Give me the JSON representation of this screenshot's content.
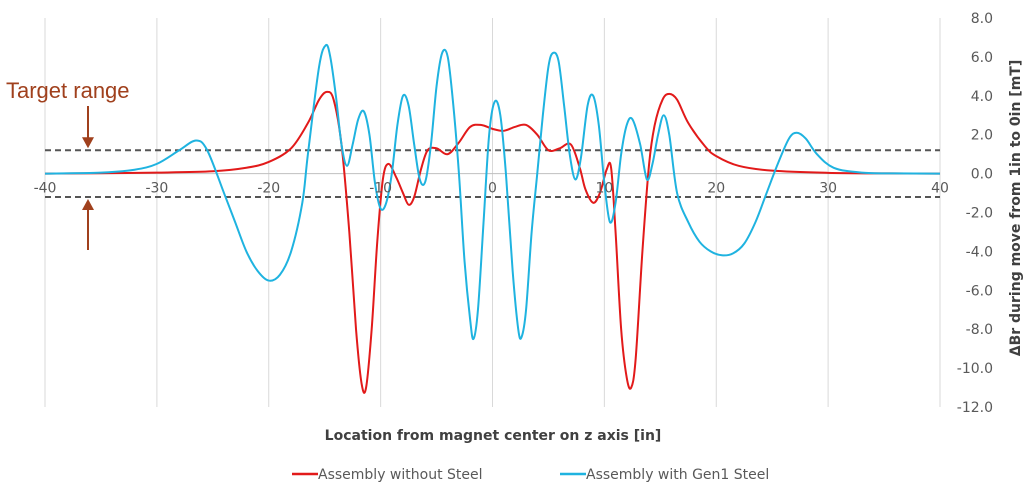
{
  "chart_data": {
    "type": "line",
    "xlabel": "Location from magnet center on z axis [in]",
    "ylabel": "ΔBr during move from 1in to 0in [mT]",
    "xlim": [
      -40,
      40
    ],
    "ylim": [
      -12,
      8
    ],
    "x_ticks": [
      "-40",
      "-30",
      "-20",
      "-10",
      "0",
      "10",
      "20",
      "30",
      "40"
    ],
    "y_ticks": [
      "8.0",
      "6.0",
      "4.0",
      "2.0",
      "0.0",
      "-2.0",
      "-4.0",
      "-6.0",
      "-8.0",
      "-10.0",
      "-12.0"
    ],
    "grid": "vertical",
    "legend": "bottom",
    "series": [
      {
        "name": "Assembly without Steel",
        "color": "#e21a1a",
        "points": [
          [
            -40,
            0.0
          ],
          [
            -35,
            0.02
          ],
          [
            -30,
            0.05
          ],
          [
            -25,
            0.12
          ],
          [
            -22,
            0.3
          ],
          [
            -20,
            0.6
          ],
          [
            -18,
            1.3
          ],
          [
            -16.5,
            2.6
          ],
          [
            -15.5,
            3.8
          ],
          [
            -14.8,
            4.2
          ],
          [
            -14.2,
            3.8
          ],
          [
            -13.5,
            1.5
          ],
          [
            -12.8,
            -3.0
          ],
          [
            -12.2,
            -8.0
          ],
          [
            -11.7,
            -10.8
          ],
          [
            -11.3,
            -11.0
          ],
          [
            -10.8,
            -8.0
          ],
          [
            -10.3,
            -3.5
          ],
          [
            -9.8,
            -0.3
          ],
          [
            -9.3,
            0.5
          ],
          [
            -8.6,
            -0.2
          ],
          [
            -8.0,
            -1.0
          ],
          [
            -7.5,
            -1.6
          ],
          [
            -7.0,
            -1.2
          ],
          [
            -6.4,
            0.2
          ],
          [
            -5.8,
            1.2
          ],
          [
            -5.0,
            1.3
          ],
          [
            -4.0,
            1.0
          ],
          [
            -3.0,
            1.6
          ],
          [
            -2.0,
            2.4
          ],
          [
            -1.0,
            2.5
          ],
          [
            0.0,
            2.3
          ],
          [
            1.0,
            2.2
          ],
          [
            2.0,
            2.4
          ],
          [
            3.0,
            2.5
          ],
          [
            4.0,
            2.0
          ],
          [
            5.0,
            1.2
          ],
          [
            6.0,
            1.3
          ],
          [
            7.0,
            1.5
          ],
          [
            7.8,
            0.3
          ],
          [
            8.3,
            -0.8
          ],
          [
            9.0,
            -1.5
          ],
          [
            9.6,
            -1.0
          ],
          [
            10.2,
            0.2
          ],
          [
            10.6,
            0.3
          ],
          [
            11.0,
            -3.0
          ],
          [
            11.5,
            -8.0
          ],
          [
            12.0,
            -10.5
          ],
          [
            12.4,
            -11.0
          ],
          [
            12.8,
            -9.5
          ],
          [
            13.4,
            -4.0
          ],
          [
            14.0,
            0.5
          ],
          [
            14.5,
            2.5
          ],
          [
            15.2,
            3.8
          ],
          [
            15.8,
            4.1
          ],
          [
            16.5,
            3.8
          ],
          [
            17.5,
            2.6
          ],
          [
            19.0,
            1.4
          ],
          [
            20.0,
            0.9
          ],
          [
            22.0,
            0.4
          ],
          [
            25.0,
            0.15
          ],
          [
            30.0,
            0.04
          ],
          [
            35.0,
            0.01
          ],
          [
            40,
            0.0
          ]
        ]
      },
      {
        "name": "Assembly with Gen1 Steel",
        "color": "#1fb3e0",
        "points": [
          [
            -40,
            0.0
          ],
          [
            -35,
            0.05
          ],
          [
            -32,
            0.2
          ],
          [
            -30,
            0.5
          ],
          [
            -28,
            1.2
          ],
          [
            -26.5,
            1.7
          ],
          [
            -25.5,
            1.2
          ],
          [
            -24,
            -1.0
          ],
          [
            -23,
            -2.5
          ],
          [
            -22,
            -4.0
          ],
          [
            -21,
            -5.0
          ],
          [
            -20,
            -5.5
          ],
          [
            -19,
            -5.2
          ],
          [
            -18,
            -4.0
          ],
          [
            -17,
            -1.5
          ],
          [
            -16.5,
            1.0
          ],
          [
            -15.5,
            5.5
          ],
          [
            -14.9,
            6.6
          ],
          [
            -14.5,
            6.0
          ],
          [
            -14.0,
            4.0
          ],
          [
            -13.5,
            1.5
          ],
          [
            -13.0,
            0.4
          ],
          [
            -12.5,
            1.5
          ],
          [
            -12.0,
            2.8
          ],
          [
            -11.5,
            3.2
          ],
          [
            -11.0,
            2.0
          ],
          [
            -10.5,
            -0.5
          ],
          [
            -10.0,
            -1.8
          ],
          [
            -9.5,
            -1.5
          ],
          [
            -9.0,
            0.0
          ],
          [
            -8.5,
            2.5
          ],
          [
            -8.0,
            4.0
          ],
          [
            -7.5,
            3.5
          ],
          [
            -7.0,
            1.5
          ],
          [
            -6.5,
            -0.3
          ],
          [
            -6.0,
            -0.4
          ],
          [
            -5.5,
            1.5
          ],
          [
            -5.0,
            4.5
          ],
          [
            -4.5,
            6.2
          ],
          [
            -4.0,
            6.0
          ],
          [
            -3.5,
            3.5
          ],
          [
            -3.0,
            0.0
          ],
          [
            -2.5,
            -4.5
          ],
          [
            -2.0,
            -7.5
          ],
          [
            -1.7,
            -8.5
          ],
          [
            -1.3,
            -7.0
          ],
          [
            -0.8,
            -2.5
          ],
          [
            -0.3,
            2.0
          ],
          [
            0.2,
            3.7
          ],
          [
            0.7,
            3.0
          ],
          [
            1.2,
            0.0
          ],
          [
            1.8,
            -5.0
          ],
          [
            2.3,
            -8.0
          ],
          [
            2.6,
            -8.4
          ],
          [
            3.0,
            -7.0
          ],
          [
            3.5,
            -3.0
          ],
          [
            4.0,
            0.0
          ],
          [
            4.5,
            3.0
          ],
          [
            5.0,
            5.5
          ],
          [
            5.4,
            6.2
          ],
          [
            5.9,
            5.8
          ],
          [
            6.4,
            3.5
          ],
          [
            6.9,
            1.0
          ],
          [
            7.4,
            -0.3
          ],
          [
            7.9,
            0.8
          ],
          [
            8.5,
            3.5
          ],
          [
            9.0,
            4.0
          ],
          [
            9.5,
            2.5
          ],
          [
            10.0,
            -0.5
          ],
          [
            10.5,
            -2.5
          ],
          [
            11.0,
            -1.5
          ],
          [
            11.5,
            1.0
          ],
          [
            12.0,
            2.5
          ],
          [
            12.5,
            2.8
          ],
          [
            13.2,
            1.5
          ],
          [
            13.8,
            -0.3
          ],
          [
            14.3,
            0.5
          ],
          [
            14.8,
            2.0
          ],
          [
            15.3,
            3.0
          ],
          [
            15.8,
            2.0
          ],
          [
            16.5,
            -1.0
          ],
          [
            17.5,
            -2.5
          ],
          [
            18.5,
            -3.5
          ],
          [
            19.5,
            -4.0
          ],
          [
            20.5,
            -4.2
          ],
          [
            21.5,
            -4.1
          ],
          [
            22.5,
            -3.6
          ],
          [
            23.5,
            -2.5
          ],
          [
            24.5,
            -1.0
          ],
          [
            25.5,
            0.5
          ],
          [
            26.5,
            1.8
          ],
          [
            27.2,
            2.1
          ],
          [
            28.0,
            1.8
          ],
          [
            29.0,
            1.0
          ],
          [
            30.5,
            0.3
          ],
          [
            33.0,
            0.05
          ],
          [
            36.0,
            0.01
          ],
          [
            40,
            0.0
          ]
        ]
      }
    ],
    "reference_lines": [
      {
        "y": 1.2,
        "color": "#555555",
        "style": "dashed"
      },
      {
        "y": -1.2,
        "color": "#555555",
        "style": "dashed"
      }
    ],
    "annotation": {
      "text": "Target range",
      "color": "#a0401d",
      "arrows": "pointing down to the upper dashed line and up to the lower dashed line"
    }
  }
}
